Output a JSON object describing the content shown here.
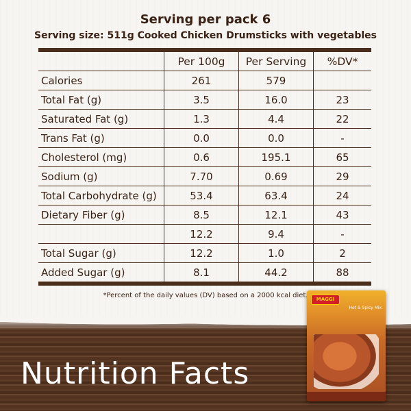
{
  "header": {
    "title": "Serving per pack 6",
    "subtitle": "Serving size: 511g Cooked Chicken Drumsticks with vegetables"
  },
  "table": {
    "columns": [
      "",
      "Per 100g",
      "Per Serving",
      "%DV*"
    ],
    "rows": [
      {
        "nutrient": "Calories",
        "per100": "261",
        "perServing": "579",
        "dv": ""
      },
      {
        "nutrient": "Total Fat (g)",
        "per100": "3.5",
        "perServing": "16.0",
        "dv": "23"
      },
      {
        "nutrient": "Saturated Fat (g)",
        "per100": "1.3",
        "perServing": "4.4",
        "dv": "22"
      },
      {
        "nutrient": "Trans Fat (g)",
        "per100": "0.0",
        "perServing": "0.0",
        "dv": "-"
      },
      {
        "nutrient": "Cholesterol (mg)",
        "per100": "0.6",
        "perServing": "195.1",
        "dv": "65"
      },
      {
        "nutrient": "Sodium (g)",
        "per100": "7.70",
        "perServing": "0.69",
        "dv": "29"
      },
      {
        "nutrient": "Total Carbohydrate (g)",
        "per100": "53.4",
        "perServing": "63.4",
        "dv": "24"
      },
      {
        "nutrient": "Dietary Fiber (g)",
        "per100": "8.5",
        "perServing": "12.1",
        "dv": "43"
      },
      {
        "nutrient": "",
        "per100": "12.2",
        "perServing": "9.4",
        "dv": "-"
      },
      {
        "nutrient": "Total Sugar (g)",
        "per100": "12.2",
        "perServing": "1.0",
        "dv": "2"
      },
      {
        "nutrient": "Added Sugar (g)",
        "per100": "8.1",
        "perServing": "44.2",
        "dv": "88"
      }
    ]
  },
  "footnote": "*Percent of the daily values (DV) based on a 2000 kcal diet.",
  "banner": "Nutrition Facts",
  "package": {
    "brand": "MAGGI",
    "label": "Hot & Spicy Mix"
  },
  "colors": {
    "text": "#3a2316",
    "rule": "#4a2d1b",
    "wood": "#5a3a25",
    "pack": "#e2902a"
  }
}
